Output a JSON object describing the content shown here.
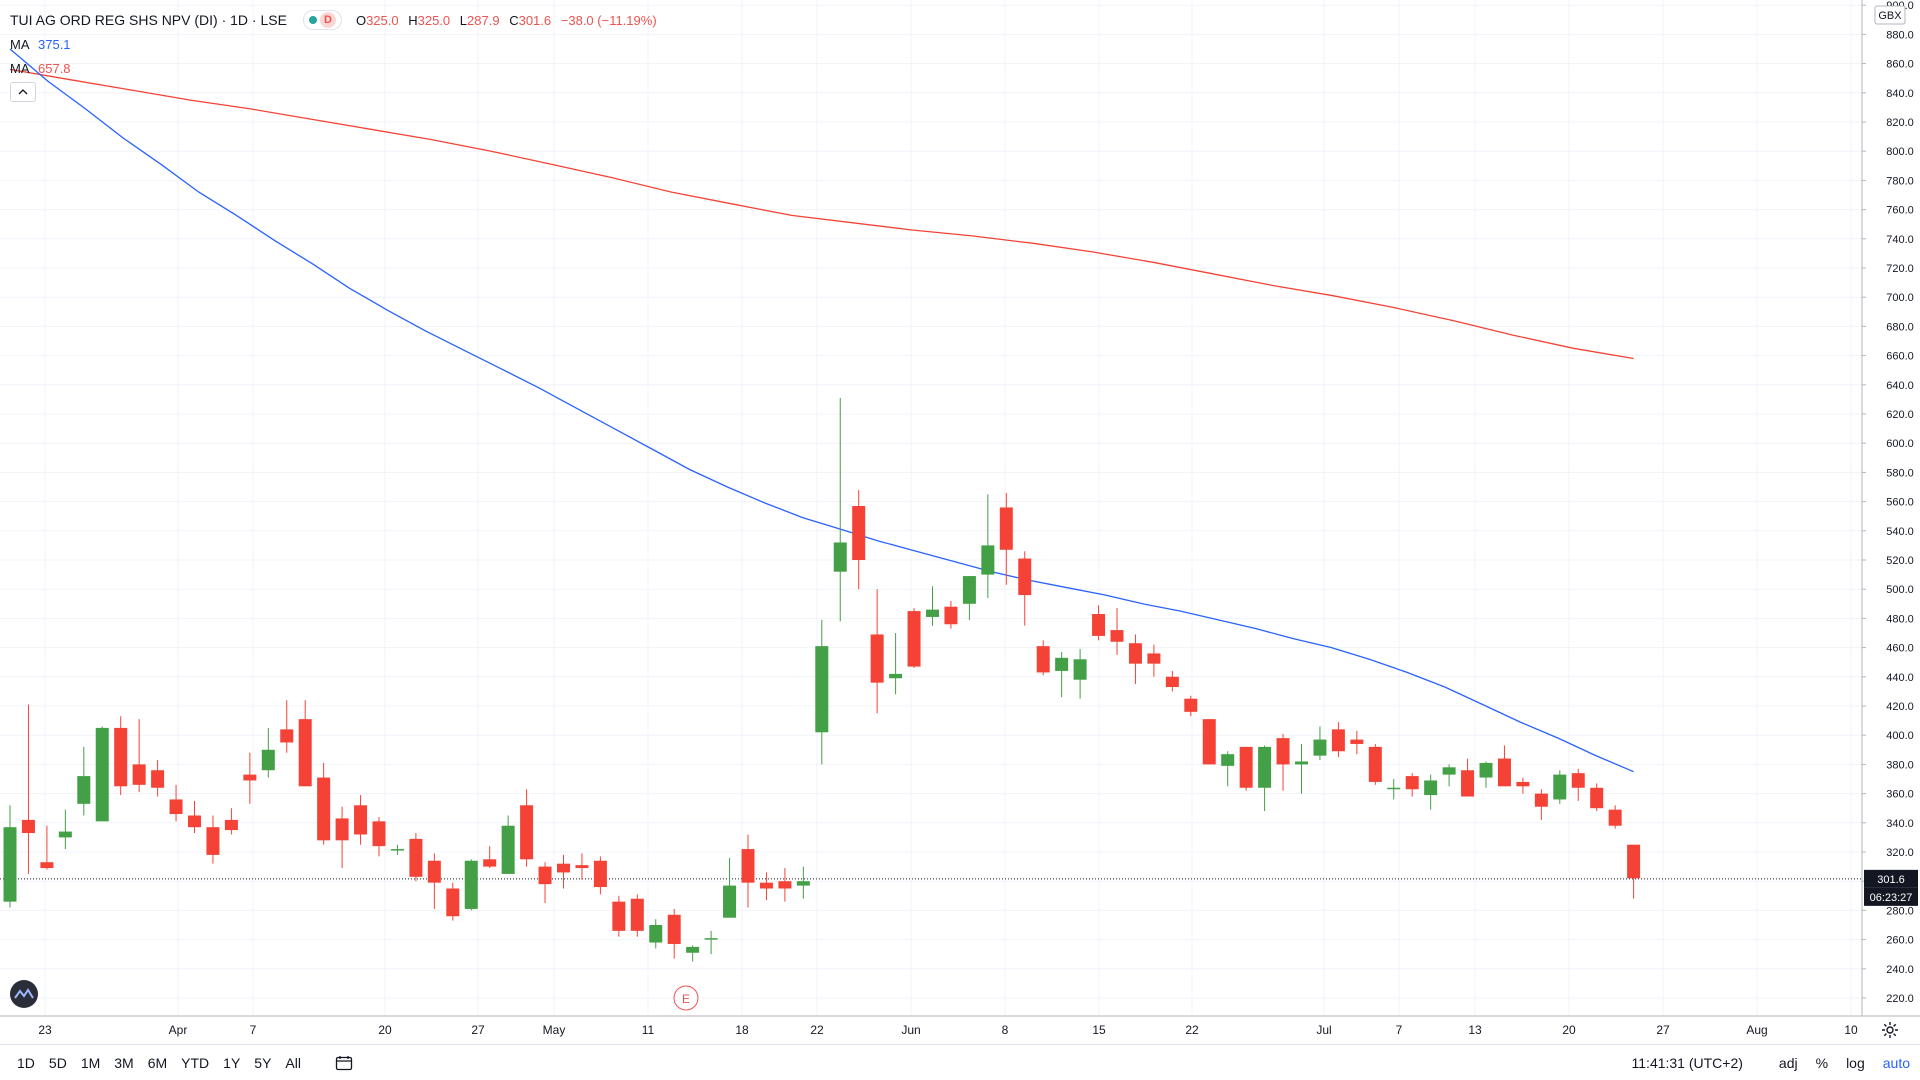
{
  "header": {
    "symbol_title": "TUI AG ORD REG SHS NPV (DI) · 1D · LSE",
    "interval_badge": "D",
    "ohlc": {
      "o_label": "O",
      "o_value": "325.0",
      "h_label": "H",
      "h_value": "325.0",
      "l_label": "L",
      "l_value": "287.9",
      "c_label": "C",
      "c_value": "301.6",
      "change": "−38.0 (−11.19%)"
    },
    "ma1": {
      "label": "MA",
      "value": "375.1"
    },
    "ma2": {
      "label": "MA",
      "value": "657.8"
    }
  },
  "price_axis": {
    "currency": "GBX",
    "last_price_label": "301.6",
    "countdown_label": "06:23:27"
  },
  "bottom_bar": {
    "ranges": [
      "1D",
      "5D",
      "1M",
      "3M",
      "6M",
      "YTD",
      "1Y",
      "5Y",
      "All"
    ],
    "clock": "11:41:31 (UTC+2)",
    "options": {
      "adj": "adj",
      "percent": "%",
      "log": "log",
      "auto": "auto"
    }
  },
  "event_marker": "E",
  "colors": {
    "up": "#43a047",
    "down": "#f44336",
    "ma_fast": "#2962ff",
    "ma_slow": "#f44336",
    "grid": "#f0f3fa"
  },
  "chart_data": {
    "type": "candlestick",
    "x_tick_labels": [
      "23",
      "Apr",
      "7",
      "20",
      "27",
      "May",
      "11",
      "18",
      "22",
      "Jun",
      "8",
      "15",
      "22",
      "Jul",
      "7",
      "13",
      "20",
      "27",
      "Aug",
      "10"
    ],
    "y_tick_labels": [
      220,
      240,
      260,
      280,
      300,
      320,
      340,
      360,
      380,
      400,
      420,
      440,
      460,
      480,
      500,
      520,
      540,
      560,
      580,
      600,
      620,
      640,
      660,
      680,
      700,
      720,
      740,
      760,
      780,
      800,
      820,
      840,
      860,
      880,
      900
    ],
    "ylim": [
      208,
      900
    ],
    "last_price": 301.6,
    "series": [
      {
        "name": "TUI AG ORD REG SHS NPV (DI)",
        "candles": [
          {
            "o": 286,
            "h": 352,
            "l": 282,
            "c": 337
          },
          {
            "o": 342,
            "h": 421,
            "l": 305,
            "c": 333
          },
          {
            "o": 313,
            "h": 338,
            "l": 308,
            "c": 309
          },
          {
            "o": 330,
            "h": 349,
            "l": 322,
            "c": 334
          },
          {
            "o": 353,
            "h": 392,
            "l": 345,
            "c": 372
          },
          {
            "o": 341,
            "h": 406,
            "l": 341,
            "c": 405
          },
          {
            "o": 405,
            "h": 413,
            "l": 359,
            "c": 365
          },
          {
            "o": 380,
            "h": 411,
            "l": 361,
            "c": 366
          },
          {
            "o": 376,
            "h": 383,
            "l": 358,
            "c": 364
          },
          {
            "o": 356,
            "h": 366,
            "l": 341,
            "c": 346
          },
          {
            "o": 345,
            "h": 355,
            "l": 333,
            "c": 337
          },
          {
            "o": 337,
            "h": 345,
            "l": 312,
            "c": 318
          },
          {
            "o": 342,
            "h": 350,
            "l": 332,
            "c": 335
          },
          {
            "o": 373,
            "h": 388,
            "l": 353,
            "c": 369
          },
          {
            "o": 376,
            "h": 405,
            "l": 371,
            "c": 390
          },
          {
            "o": 404,
            "h": 424,
            "l": 388,
            "c": 395
          },
          {
            "o": 411,
            "h": 424,
            "l": 365,
            "c": 365
          },
          {
            "o": 371,
            "h": 381,
            "l": 325,
            "c": 328
          },
          {
            "o": 343,
            "h": 351,
            "l": 309,
            "c": 328
          },
          {
            "o": 352,
            "h": 359,
            "l": 325,
            "c": 332
          },
          {
            "o": 341,
            "h": 344,
            "l": 317,
            "c": 324
          },
          {
            "o": 322,
            "h": 325,
            "l": 318,
            "c": 322
          },
          {
            "o": 329,
            "h": 333,
            "l": 300,
            "c": 303
          },
          {
            "o": 314,
            "h": 319,
            "l": 281,
            "c": 299
          },
          {
            "o": 295,
            "h": 299,
            "l": 273,
            "c": 276
          },
          {
            "o": 281,
            "h": 315,
            "l": 280,
            "c": 314
          },
          {
            "o": 315,
            "h": 324,
            "l": 309,
            "c": 310
          },
          {
            "o": 305,
            "h": 345,
            "l": 305,
            "c": 338
          },
          {
            "o": 352,
            "h": 363,
            "l": 310,
            "c": 315
          },
          {
            "o": 310,
            "h": 313,
            "l": 285,
            "c": 298
          },
          {
            "o": 312,
            "h": 318,
            "l": 295,
            "c": 306
          },
          {
            "o": 311,
            "h": 319,
            "l": 301,
            "c": 309
          },
          {
            "o": 314,
            "h": 317,
            "l": 291,
            "c": 296
          },
          {
            "o": 286,
            "h": 290,
            "l": 262,
            "c": 266
          },
          {
            "o": 288,
            "h": 291,
            "l": 262,
            "c": 266
          },
          {
            "o": 258,
            "h": 274,
            "l": 254,
            "c": 270
          },
          {
            "o": 277,
            "h": 281,
            "l": 247,
            "c": 257
          },
          {
            "o": 251,
            "h": 256,
            "l": 245,
            "c": 255
          },
          {
            "o": 260,
            "h": 266,
            "l": 250,
            "c": 261
          },
          {
            "o": 275,
            "h": 316,
            "l": 275,
            "c": 297
          },
          {
            "o": 322,
            "h": 332,
            "l": 282,
            "c": 299
          },
          {
            "o": 299,
            "h": 306,
            "l": 287,
            "c": 295
          },
          {
            "o": 300,
            "h": 309,
            "l": 286,
            "c": 295
          },
          {
            "o": 297,
            "h": 310,
            "l": 288,
            "c": 300
          },
          {
            "o": 402,
            "h": 479,
            "l": 380,
            "c": 461
          },
          {
            "o": 512,
            "h": 631,
            "l": 478,
            "c": 532
          },
          {
            "o": 557,
            "h": 568,
            "l": 500,
            "c": 520
          },
          {
            "o": 469,
            "h": 500,
            "l": 415,
            "c": 436
          },
          {
            "o": 439,
            "h": 470,
            "l": 428,
            "c": 442
          },
          {
            "o": 485,
            "h": 487,
            "l": 446,
            "c": 447
          },
          {
            "o": 481,
            "h": 502,
            "l": 475,
            "c": 486
          },
          {
            "o": 488,
            "h": 492,
            "l": 473,
            "c": 476
          },
          {
            "o": 490,
            "h": 509,
            "l": 479,
            "c": 509
          },
          {
            "o": 510,
            "h": 565,
            "l": 494,
            "c": 530
          },
          {
            "o": 556,
            "h": 566,
            "l": 503,
            "c": 527
          },
          {
            "o": 521,
            "h": 526,
            "l": 475,
            "c": 496
          },
          {
            "o": 461,
            "h": 465,
            "l": 441,
            "c": 443
          },
          {
            "o": 444,
            "h": 457,
            "l": 426,
            "c": 453
          },
          {
            "o": 438,
            "h": 459,
            "l": 425,
            "c": 452
          },
          {
            "o": 483,
            "h": 489,
            "l": 465,
            "c": 468
          },
          {
            "o": 472,
            "h": 487,
            "l": 455,
            "c": 464
          },
          {
            "o": 463,
            "h": 469,
            "l": 435,
            "c": 449
          },
          {
            "o": 456,
            "h": 462,
            "l": 440,
            "c": 449
          },
          {
            "o": 440,
            "h": 444,
            "l": 430,
            "c": 433
          },
          {
            "o": 425,
            "h": 427,
            "l": 413,
            "c": 416
          },
          {
            "o": 411,
            "h": 411,
            "l": 380,
            "c": 380
          },
          {
            "o": 379,
            "h": 389,
            "l": 365,
            "c": 387
          },
          {
            "o": 392,
            "h": 392,
            "l": 362,
            "c": 364
          },
          {
            "o": 364,
            "h": 393,
            "l": 348,
            "c": 392
          },
          {
            "o": 398,
            "h": 401,
            "l": 362,
            "c": 380
          },
          {
            "o": 380,
            "h": 394,
            "l": 360,
            "c": 382
          },
          {
            "o": 386,
            "h": 406,
            "l": 383,
            "c": 397
          },
          {
            "o": 404,
            "h": 409,
            "l": 385,
            "c": 389
          },
          {
            "o": 397,
            "h": 403,
            "l": 387,
            "c": 394
          },
          {
            "o": 392,
            "h": 394,
            "l": 366,
            "c": 368
          },
          {
            "o": 364,
            "h": 370,
            "l": 356,
            "c": 364
          },
          {
            "o": 372,
            "h": 374,
            "l": 358,
            "c": 363
          },
          {
            "o": 359,
            "h": 373,
            "l": 349,
            "c": 369
          },
          {
            "o": 373,
            "h": 380,
            "l": 365,
            "c": 378
          },
          {
            "o": 376,
            "h": 384,
            "l": 358,
            "c": 358
          },
          {
            "o": 371,
            "h": 382,
            "l": 364,
            "c": 381
          },
          {
            "o": 384,
            "h": 393,
            "l": 365,
            "c": 365
          },
          {
            "o": 368,
            "h": 371,
            "l": 360,
            "c": 365
          },
          {
            "o": 360,
            "h": 363,
            "l": 342,
            "c": 351
          },
          {
            "o": 356,
            "h": 376,
            "l": 353,
            "c": 373
          },
          {
            "o": 374,
            "h": 377,
            "l": 355,
            "c": 364
          },
          {
            "o": 364,
            "h": 367,
            "l": 348,
            "c": 350
          },
          {
            "o": 349,
            "h": 352,
            "l": 336,
            "c": 338
          },
          {
            "o": 325,
            "h": 325,
            "l": 288,
            "c": 302
          }
        ]
      },
      {
        "name": "MA 375.1",
        "values": [
          870,
          848,
          829,
          809,
          791,
          772,
          756,
          739,
          723,
          706,
          691,
          677,
          664,
          651,
          638,
          624,
          610,
          596,
          582,
          570,
          559,
          549,
          541,
          533,
          526,
          519,
          512,
          506,
          501,
          496,
          490,
          485,
          479,
          473,
          466,
          460,
          452,
          443,
          433,
          421,
          409,
          398,
          386,
          375
        ]
      },
      {
        "name": "MA 657.8",
        "values": [
          856,
          849,
          842,
          835,
          829,
          822,
          815,
          808,
          800,
          791,
          782,
          772,
          764,
          756,
          751,
          746,
          742,
          737,
          731,
          724,
          716,
          708,
          701,
          693,
          684,
          674,
          665,
          658
        ]
      }
    ]
  }
}
